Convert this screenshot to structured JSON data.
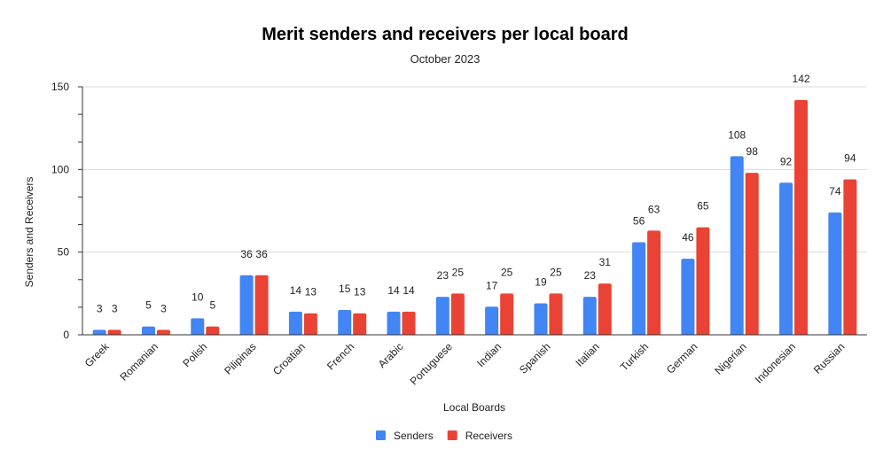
{
  "chart_data": {
    "type": "bar",
    "title": "Merit senders and receivers per local board",
    "subtitle": "October 2023",
    "xlabel": "Local Boards",
    "ylabel": "Senders and Receivers",
    "ylim": [
      0,
      150
    ],
    "yticks": [
      0,
      50,
      100,
      150
    ],
    "grid": true,
    "legend_position": "bottom",
    "categories": [
      "Greek",
      "Romanian",
      "Polish",
      "Pilipinas",
      "Croatian",
      "French",
      "Arabic",
      "Portuguese",
      "Indian",
      "Spanish",
      "Italian",
      "Turkish",
      "German",
      "Nigerian",
      "Indonesian",
      "Russian"
    ],
    "series": [
      {
        "name": "Senders",
        "color": "#4285f4",
        "values": [
          3,
          5,
          10,
          36,
          14,
          15,
          14,
          23,
          17,
          19,
          23,
          56,
          46,
          108,
          92,
          74
        ]
      },
      {
        "name": "Receivers",
        "color": "#ea4335",
        "values": [
          3,
          3,
          5,
          36,
          13,
          13,
          14,
          25,
          25,
          25,
          31,
          63,
          65,
          98,
          142,
          94
        ]
      }
    ]
  }
}
